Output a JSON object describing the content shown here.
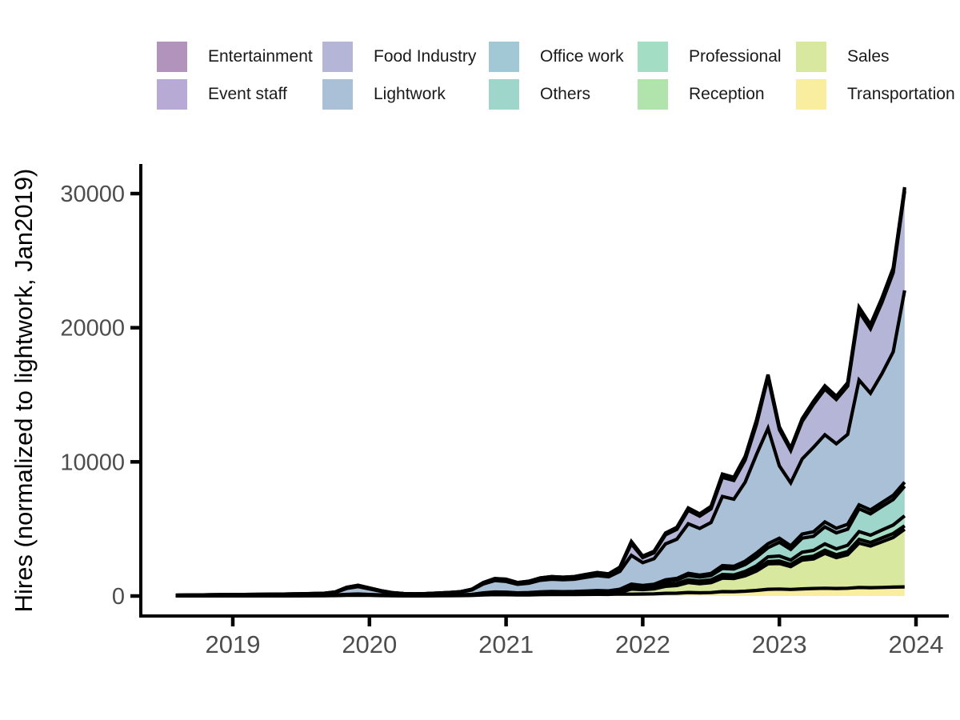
{
  "y_axis_title": "Hires (normalized to lightwork, Jan2019)",
  "legend": {
    "items": [
      {
        "label": "Entertainment",
        "color": "#b293bb"
      },
      {
        "label": "Food Industry",
        "color": "#b5b5d8"
      },
      {
        "label": "Office work",
        "color": "#a2c7d5"
      },
      {
        "label": "Professional",
        "color": "#a3ddc3"
      },
      {
        "label": "Sales",
        "color": "#d8e89e"
      },
      {
        "label": "Event staff",
        "color": "#b7aad4"
      },
      {
        "label": "Lightwork",
        "color": "#a9c0d6"
      },
      {
        "label": "Others",
        "color": "#9fd6cb"
      },
      {
        "label": "Reception",
        "color": "#b0e4ac"
      },
      {
        "label": "Transportation",
        "color": "#f9ee9f"
      }
    ]
  },
  "chart_data": {
    "type": "area",
    "stacked": true,
    "title": "",
    "xlabel": "",
    "ylabel": "Hires (normalized to lightwork, Jan2019)",
    "grid": false,
    "legend_position": "top",
    "outline_color": "#000000",
    "axis_color": "#000000",
    "tick_label_color": "#4d4d4d",
    "x_start": 2018.5833,
    "x_step": 0.0833333,
    "x_ticks": [
      "2019",
      "2020",
      "2021",
      "2022",
      "2023",
      "2024"
    ],
    "x_tick_values": [
      2019,
      2020,
      2021,
      2022,
      2023,
      2024
    ],
    "y_ticks": [
      "0",
      "10000",
      "20000",
      "30000"
    ],
    "y_tick_values": [
      0,
      10000,
      20000,
      30000
    ],
    "x_range": [
      2018.45,
      2024.25
    ],
    "y_range": [
      0,
      33700
    ],
    "series": [
      {
        "name": "Transportation",
        "color": "#f9ee9f",
        "values": [
          10,
          12,
          13,
          14,
          15,
          15,
          16,
          16,
          17,
          18,
          18,
          19,
          20,
          22,
          30,
          45,
          55,
          45,
          32,
          22,
          16,
          15,
          16,
          20,
          23,
          28,
          42,
          80,
          100,
          95,
          78,
          85,
          100,
          108,
          105,
          108,
          118,
          128,
          120,
          150,
          140,
          150,
          160,
          200,
          210,
          260,
          240,
          255,
          330,
          320,
          360,
          420,
          500,
          520,
          490,
          530,
          560,
          580,
          560,
          580,
          640,
          620,
          640,
          660,
          680
        ]
      },
      {
        "name": "Sales",
        "color": "#d8e89e",
        "values": [
          2,
          2,
          3,
          3,
          4,
          4,
          4,
          5,
          5,
          6,
          6,
          7,
          8,
          9,
          12,
          20,
          25,
          20,
          14,
          9,
          6,
          5,
          7,
          10,
          13,
          16,
          25,
          50,
          65,
          62,
          50,
          56,
          70,
          76,
          74,
          78,
          88,
          98,
          92,
          125,
          380,
          330,
          370,
          520,
          570,
          740,
          680,
          740,
          1000,
          980,
          1150,
          1440,
          1900,
          1900,
          1700,
          2150,
          2200,
          2600,
          2300,
          2500,
          3300,
          3100,
          3400,
          3700,
          4300
        ]
      },
      {
        "name": "Reception",
        "color": "#b0e4ac",
        "values": [
          1,
          1,
          1,
          1,
          2,
          2,
          2,
          2,
          2,
          2,
          2,
          3,
          3,
          3,
          4,
          6,
          8,
          6,
          4,
          3,
          2,
          2,
          2,
          3,
          4,
          5,
          7,
          13,
          16,
          15,
          12,
          14,
          17,
          18,
          17,
          18,
          20,
          22,
          21,
          28,
          40,
          35,
          38,
          48,
          52,
          68,
          62,
          68,
          92,
          90,
          105,
          130,
          170,
          185,
          160,
          190,
          210,
          230,
          215,
          230,
          280,
          265,
          285,
          300,
          250
        ]
      },
      {
        "name": "Professional",
        "color": "#a3ddc3",
        "values": [
          1,
          1,
          2,
          2,
          2,
          2,
          2,
          2,
          3,
          3,
          3,
          3,
          4,
          4,
          6,
          10,
          12,
          9,
          7,
          5,
          3,
          3,
          4,
          5,
          6,
          8,
          12,
          22,
          28,
          27,
          22,
          24,
          29,
          31,
          30,
          31,
          35,
          38,
          36,
          48,
          70,
          60,
          68,
          95,
          105,
          135,
          125,
          135,
          185,
          180,
          215,
          265,
          350,
          380,
          330,
          390,
          430,
          470,
          440,
          470,
          580,
          545,
          590,
          630,
          750
        ]
      },
      {
        "name": "Others",
        "color": "#9fd6cb",
        "values": [
          2,
          3,
          3,
          4,
          4,
          5,
          5,
          5,
          6,
          6,
          7,
          7,
          8,
          9,
          14,
          25,
          30,
          22,
          15,
          10,
          7,
          6,
          7,
          9,
          11,
          14,
          21,
          42,
          55,
          52,
          42,
          46,
          56,
          60,
          58,
          60,
          66,
          73,
          69,
          90,
          170,
          145,
          165,
          230,
          255,
          330,
          300,
          330,
          450,
          440,
          520,
          650,
          680,
          1020,
          800,
          1050,
          1050,
          1270,
          1190,
          1200,
          1700,
          1600,
          1750,
          1900,
          2200
        ]
      },
      {
        "name": "Office work",
        "color": "#a2c7d5",
        "values": [
          2,
          2,
          3,
          3,
          3,
          3,
          3,
          4,
          4,
          4,
          5,
          5,
          5,
          6,
          9,
          15,
          18,
          13,
          9,
          7,
          5,
          4,
          5,
          6,
          8,
          10,
          15,
          28,
          36,
          34,
          27,
          30,
          36,
          39,
          37,
          39,
          43,
          47,
          44,
          58,
          80,
          70,
          78,
          110,
          120,
          155,
          145,
          155,
          210,
          205,
          245,
          305,
          300,
          300,
          260,
          305,
          340,
          370,
          345,
          370,
          300,
          290,
          300,
          310,
          300
        ]
      },
      {
        "name": "Lightwork",
        "color": "#a9c0d6",
        "values": [
          38,
          44,
          49,
          56,
          61,
          70,
          73,
          76,
          82,
          89,
          96,
          106,
          115,
          128,
          195,
          440,
          550,
          410,
          272,
          167,
          118,
          103,
          117,
          143,
          169,
          208,
          330,
          660,
          850,
          800,
          640,
          700,
          860,
          920,
          890,
          920,
          1020,
          1115,
          1050,
          1340,
          2150,
          1700,
          1900,
          2680,
          2920,
          3700,
          3480,
          3800,
          5150,
          5000,
          5900,
          7350,
          8600,
          5400,
          4700,
          5600,
          6300,
          6500,
          6300,
          6700,
          9300,
          8700,
          9600,
          10700,
          14300
        ]
      },
      {
        "name": "Food Industry",
        "color": "#b5b5d8",
        "values": [
          3,
          4,
          5,
          6,
          7,
          7,
          8,
          8,
          9,
          10,
          11,
          12,
          14,
          16,
          25,
          75,
          90,
          65,
          42,
          24,
          20,
          19,
          19,
          21,
          23,
          28,
          44,
          95,
          135,
          148,
          118,
          130,
          160,
          175,
          168,
          175,
          190,
          207,
          195,
          280,
          860,
          380,
          450,
          680,
          740,
          1000,
          920,
          1020,
          1430,
          1400,
          1650,
          2250,
          3800,
          2700,
          2400,
          2800,
          3200,
          3400,
          3300,
          3600,
          5100,
          4800,
          5300,
          5900,
          7400
        ]
      },
      {
        "name": "Event staff",
        "color": "#b7aad4",
        "values": [
          1,
          1,
          1,
          1,
          2,
          2,
          2,
          2,
          2,
          2,
          2,
          2,
          2,
          2,
          4,
          10,
          8,
          7,
          4,
          2,
          2,
          2,
          2,
          2,
          2,
          2,
          3,
          7,
          10,
          12,
          10,
          11,
          14,
          15,
          14,
          15,
          16,
          17,
          16,
          22,
          120,
          70,
          75,
          90,
          100,
          120,
          110,
          120,
          160,
          155,
          180,
          220,
          130,
          140,
          120,
          140,
          155,
          170,
          160,
          170,
          220,
          210,
          225,
          240,
          200
        ]
      },
      {
        "name": "Entertainment",
        "color": "#b293bb",
        "values": [
          0,
          0,
          0,
          0,
          0,
          0,
          0,
          0,
          0,
          0,
          0,
          1,
          1,
          1,
          1,
          4,
          4,
          3,
          1,
          1,
          1,
          1,
          1,
          1,
          1,
          1,
          1,
          3,
          5,
          5,
          4,
          5,
          6,
          6,
          6,
          6,
          7,
          8,
          7,
          10,
          60,
          35,
          38,
          45,
          50,
          60,
          55,
          60,
          80,
          78,
          90,
          110,
          70,
          70,
          60,
          70,
          80,
          85,
          80,
          85,
          110,
          105,
          115,
          120,
          100
        ]
      }
    ]
  }
}
